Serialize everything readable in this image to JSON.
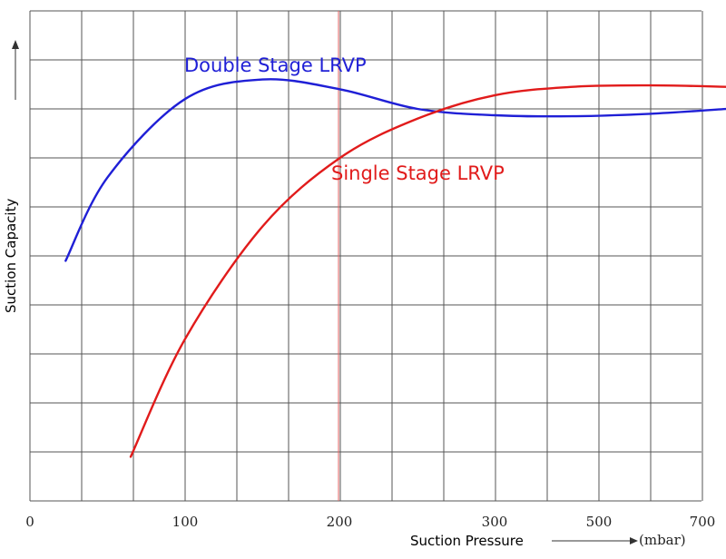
{
  "chart_data": {
    "type": "line",
    "xlabel": "Suction Pressure",
    "xunit": "(mbar)",
    "ylabel": "Suction Capacity",
    "xtick_labels": [
      "0",
      "100",
      "200",
      "300",
      "500",
      "700"
    ],
    "grid": true,
    "highlight_x": 200,
    "series": [
      {
        "name": "Double Stage LRVP",
        "color": "#1f1fd6",
        "points": [
          [
            23,
            4.9
          ],
          [
            50,
            6.6
          ],
          [
            100,
            8.2
          ],
          [
            150,
            8.6
          ],
          [
            200,
            8.4
          ],
          [
            250,
            8.0
          ],
          [
            300,
            7.87
          ],
          [
            350,
            7.85
          ],
          [
            400,
            7.9
          ],
          [
            450,
            8.0
          ],
          [
            500,
            8.1
          ]
        ]
      },
      {
        "name": "Single Stage LRVP",
        "color": "#e11b1b",
        "points": [
          [
            65,
            0.9
          ],
          [
            100,
            3.3
          ],
          [
            150,
            5.6
          ],
          [
            200,
            7.0
          ],
          [
            250,
            7.8
          ],
          [
            300,
            8.28
          ],
          [
            350,
            8.45
          ],
          [
            400,
            8.48
          ],
          [
            450,
            8.45
          ],
          [
            500,
            8.4
          ]
        ]
      }
    ]
  }
}
